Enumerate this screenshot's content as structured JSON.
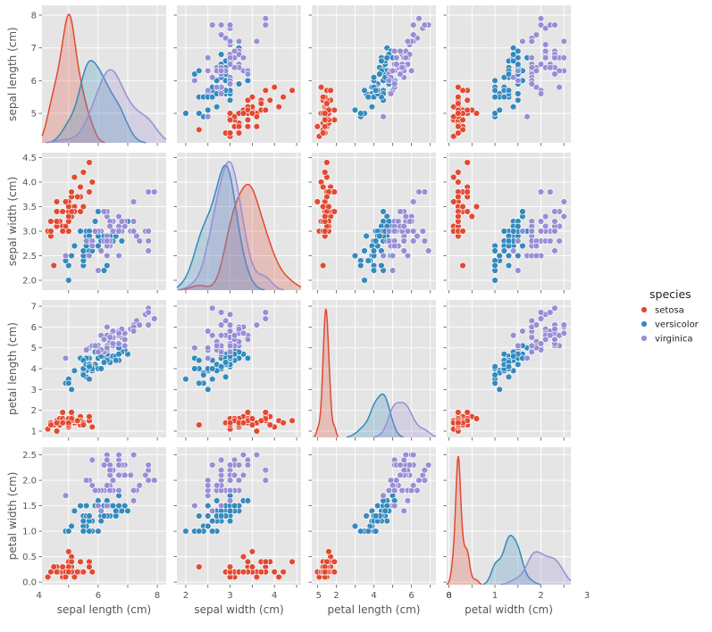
{
  "chart_data": {
    "type": "scatter",
    "subtype": "pairplot",
    "diag_kind": "kde",
    "variables": [
      "sepal length (cm)",
      "sepal width (cm)",
      "petal length (cm)",
      "petal width (cm)"
    ],
    "axis_ranges": [
      [
        4.1,
        8.3
      ],
      [
        1.8,
        4.6
      ],
      [
        0.7,
        7.3
      ],
      [
        -0.05,
        2.65
      ]
    ],
    "ticks": [
      [
        4,
        5,
        6,
        7,
        8
      ],
      [
        2.0,
        2.5,
        3.0,
        3.5,
        4.0,
        4.5
      ],
      [
        1,
        2,
        3,
        4,
        5,
        6,
        7
      ],
      [
        0.0,
        0.5,
        1.0,
        1.5,
        2.0,
        2.5
      ]
    ],
    "tick_labels_y": [
      [
        "5",
        "6",
        "7",
        "8"
      ],
      [
        "2.0",
        "2.5",
        "3.0",
        "3.5",
        "4.0",
        "4.5"
      ],
      [
        "1",
        "2",
        "3",
        "4",
        "5",
        "6",
        "7"
      ],
      [
        "0.0",
        "0.5",
        "1.0",
        "1.5",
        "2.0",
        "2.5"
      ]
    ],
    "tick_labels_x": [
      [
        "4",
        "6",
        "8"
      ],
      [
        "2",
        "3",
        "4",
        "5"
      ],
      [
        "2",
        "4",
        "6",
        "8"
      ],
      [
        "0",
        "1",
        "2",
        "3"
      ]
    ],
    "grid": true,
    "legend": {
      "title": "species",
      "placement": "right"
    },
    "series": [
      {
        "name": "setosa",
        "color": "#e24a33",
        "rows": [
          [
            5.1,
            3.5,
            1.4,
            0.2
          ],
          [
            4.9,
            3.0,
            1.4,
            0.2
          ],
          [
            4.7,
            3.2,
            1.3,
            0.2
          ],
          [
            4.6,
            3.1,
            1.5,
            0.2
          ],
          [
            5.0,
            3.6,
            1.4,
            0.2
          ],
          [
            5.4,
            3.9,
            1.7,
            0.4
          ],
          [
            4.6,
            3.4,
            1.4,
            0.3
          ],
          [
            5.0,
            3.4,
            1.5,
            0.2
          ],
          [
            4.4,
            2.9,
            1.4,
            0.2
          ],
          [
            4.9,
            3.1,
            1.5,
            0.1
          ],
          [
            5.4,
            3.7,
            1.5,
            0.2
          ],
          [
            4.8,
            3.4,
            1.6,
            0.2
          ],
          [
            4.8,
            3.0,
            1.4,
            0.1
          ],
          [
            4.3,
            3.0,
            1.1,
            0.1
          ],
          [
            5.8,
            4.0,
            1.2,
            0.2
          ],
          [
            5.7,
            4.4,
            1.5,
            0.4
          ],
          [
            5.4,
            3.9,
            1.3,
            0.4
          ],
          [
            5.1,
            3.5,
            1.4,
            0.3
          ],
          [
            5.7,
            3.8,
            1.7,
            0.3
          ],
          [
            5.1,
            3.8,
            1.5,
            0.3
          ],
          [
            5.4,
            3.4,
            1.7,
            0.2
          ],
          [
            5.1,
            3.7,
            1.5,
            0.4
          ],
          [
            4.6,
            3.6,
            1.0,
            0.2
          ],
          [
            5.1,
            3.3,
            1.7,
            0.5
          ],
          [
            4.8,
            3.4,
            1.9,
            0.2
          ],
          [
            5.0,
            3.0,
            1.6,
            0.2
          ],
          [
            5.0,
            3.4,
            1.6,
            0.4
          ],
          [
            5.2,
            3.5,
            1.5,
            0.2
          ],
          [
            5.2,
            3.4,
            1.4,
            0.2
          ],
          [
            4.7,
            3.2,
            1.6,
            0.2
          ],
          [
            4.8,
            3.1,
            1.6,
            0.2
          ],
          [
            5.4,
            3.4,
            1.5,
            0.4
          ],
          [
            5.2,
            4.1,
            1.5,
            0.1
          ],
          [
            5.5,
            4.2,
            1.4,
            0.2
          ],
          [
            4.9,
            3.1,
            1.5,
            0.2
          ],
          [
            5.0,
            3.2,
            1.2,
            0.2
          ],
          [
            5.5,
            3.5,
            1.3,
            0.2
          ],
          [
            4.9,
            3.6,
            1.4,
            0.1
          ],
          [
            4.4,
            3.0,
            1.3,
            0.2
          ],
          [
            5.1,
            3.4,
            1.5,
            0.2
          ],
          [
            5.0,
            3.5,
            1.3,
            0.3
          ],
          [
            4.5,
            2.3,
            1.3,
            0.3
          ],
          [
            4.4,
            3.2,
            1.3,
            0.2
          ],
          [
            5.0,
            3.5,
            1.6,
            0.6
          ],
          [
            5.1,
            3.8,
            1.9,
            0.4
          ],
          [
            4.8,
            3.0,
            1.4,
            0.3
          ],
          [
            5.1,
            3.8,
            1.6,
            0.2
          ],
          [
            4.6,
            3.2,
            1.4,
            0.2
          ],
          [
            5.3,
            3.7,
            1.5,
            0.2
          ],
          [
            5.0,
            3.3,
            1.4,
            0.2
          ]
        ]
      },
      {
        "name": "versicolor",
        "color": "#348abd",
        "rows": [
          [
            7.0,
            3.2,
            4.7,
            1.4
          ],
          [
            6.4,
            3.2,
            4.5,
            1.5
          ],
          [
            6.9,
            3.1,
            4.9,
            1.5
          ],
          [
            5.5,
            2.3,
            4.0,
            1.3
          ],
          [
            6.5,
            2.8,
            4.6,
            1.5
          ],
          [
            5.7,
            2.8,
            4.5,
            1.3
          ],
          [
            6.3,
            3.3,
            4.7,
            1.6
          ],
          [
            4.9,
            2.4,
            3.3,
            1.0
          ],
          [
            6.6,
            2.9,
            4.6,
            1.3
          ],
          [
            5.2,
            2.7,
            3.9,
            1.4
          ],
          [
            5.0,
            2.0,
            3.5,
            1.0
          ],
          [
            5.9,
            3.0,
            4.2,
            1.5
          ],
          [
            6.0,
            2.2,
            4.0,
            1.0
          ],
          [
            6.1,
            2.9,
            4.7,
            1.4
          ],
          [
            5.6,
            2.9,
            3.6,
            1.3
          ],
          [
            6.7,
            3.1,
            4.4,
            1.4
          ],
          [
            5.6,
            3.0,
            4.5,
            1.5
          ],
          [
            5.8,
            2.7,
            4.1,
            1.0
          ],
          [
            6.2,
            2.2,
            4.5,
            1.5
          ],
          [
            5.6,
            2.5,
            3.9,
            1.1
          ],
          [
            5.9,
            3.2,
            4.8,
            1.8
          ],
          [
            6.1,
            2.8,
            4.0,
            1.3
          ],
          [
            6.3,
            2.5,
            4.9,
            1.5
          ],
          [
            6.1,
            2.8,
            4.7,
            1.2
          ],
          [
            6.4,
            2.9,
            4.3,
            1.3
          ],
          [
            6.6,
            3.0,
            4.4,
            1.4
          ],
          [
            6.8,
            2.8,
            4.8,
            1.4
          ],
          [
            6.7,
            3.0,
            5.0,
            1.7
          ],
          [
            6.0,
            2.9,
            4.5,
            1.5
          ],
          [
            5.7,
            2.6,
            3.5,
            1.0
          ],
          [
            5.5,
            2.4,
            3.8,
            1.1
          ],
          [
            5.5,
            2.4,
            3.7,
            1.0
          ],
          [
            5.8,
            2.7,
            3.9,
            1.2
          ],
          [
            6.0,
            2.7,
            5.1,
            1.6
          ],
          [
            5.4,
            3.0,
            4.5,
            1.5
          ],
          [
            6.0,
            3.4,
            4.5,
            1.6
          ],
          [
            6.7,
            3.1,
            4.7,
            1.5
          ],
          [
            6.3,
            2.3,
            4.4,
            1.3
          ],
          [
            5.6,
            3.0,
            4.1,
            1.3
          ],
          [
            5.5,
            2.5,
            4.0,
            1.3
          ],
          [
            5.5,
            2.6,
            4.4,
            1.2
          ],
          [
            6.1,
            3.0,
            4.6,
            1.4
          ],
          [
            5.8,
            2.6,
            4.0,
            1.2
          ],
          [
            5.0,
            2.3,
            3.3,
            1.0
          ],
          [
            5.6,
            2.7,
            4.2,
            1.3
          ],
          [
            5.7,
            3.0,
            4.2,
            1.2
          ],
          [
            5.7,
            2.9,
            4.2,
            1.3
          ],
          [
            6.2,
            2.9,
            4.3,
            1.3
          ],
          [
            5.1,
            2.5,
            3.0,
            1.1
          ],
          [
            5.7,
            2.8,
            4.1,
            1.3
          ]
        ]
      },
      {
        "name": "virginica",
        "color": "#988ed5",
        "rows": [
          [
            6.3,
            3.3,
            6.0,
            2.5
          ],
          [
            5.8,
            2.7,
            5.1,
            1.9
          ],
          [
            7.1,
            3.0,
            5.9,
            2.1
          ],
          [
            6.3,
            2.9,
            5.6,
            1.8
          ],
          [
            6.5,
            3.0,
            5.8,
            2.2
          ],
          [
            7.6,
            3.0,
            6.6,
            2.1
          ],
          [
            4.9,
            2.5,
            4.5,
            1.7
          ],
          [
            7.3,
            2.9,
            6.3,
            1.8
          ],
          [
            6.7,
            2.5,
            5.8,
            1.8
          ],
          [
            7.2,
            3.6,
            6.1,
            2.5
          ],
          [
            6.5,
            3.2,
            5.1,
            2.0
          ],
          [
            6.4,
            2.7,
            5.3,
            1.9
          ],
          [
            6.8,
            3.0,
            5.5,
            2.1
          ],
          [
            5.7,
            2.5,
            5.0,
            2.0
          ],
          [
            5.8,
            2.8,
            5.1,
            2.4
          ],
          [
            6.4,
            3.2,
            5.3,
            2.3
          ],
          [
            6.5,
            3.0,
            5.5,
            1.8
          ],
          [
            7.7,
            3.8,
            6.7,
            2.2
          ],
          [
            7.7,
            2.6,
            6.9,
            2.3
          ],
          [
            6.0,
            2.2,
            5.0,
            1.5
          ],
          [
            6.9,
            3.2,
            5.7,
            2.3
          ],
          [
            5.6,
            2.8,
            4.9,
            2.0
          ],
          [
            7.7,
            2.8,
            6.7,
            2.0
          ],
          [
            6.3,
            2.7,
            4.9,
            1.8
          ],
          [
            6.7,
            3.3,
            5.7,
            2.1
          ],
          [
            7.2,
            3.2,
            6.0,
            1.8
          ],
          [
            6.2,
            2.8,
            4.8,
            1.8
          ],
          [
            6.1,
            3.0,
            4.9,
            1.8
          ],
          [
            6.4,
            2.8,
            5.6,
            2.1
          ],
          [
            7.2,
            3.0,
            5.8,
            1.6
          ],
          [
            7.4,
            2.8,
            6.1,
            1.9
          ],
          [
            7.9,
            3.8,
            6.4,
            2.0
          ],
          [
            6.4,
            2.8,
            5.6,
            2.2
          ],
          [
            6.3,
            2.8,
            5.1,
            1.5
          ],
          [
            6.1,
            2.6,
            5.6,
            1.4
          ],
          [
            7.7,
            3.0,
            6.1,
            2.3
          ],
          [
            6.3,
            3.4,
            5.6,
            2.4
          ],
          [
            6.4,
            3.1,
            5.5,
            1.8
          ],
          [
            6.0,
            3.0,
            4.8,
            1.8
          ],
          [
            6.9,
            3.1,
            5.4,
            2.1
          ],
          [
            6.7,
            3.1,
            5.6,
            2.4
          ],
          [
            6.9,
            3.1,
            5.1,
            2.3
          ],
          [
            5.8,
            2.7,
            5.1,
            1.9
          ],
          [
            6.8,
            3.2,
            5.9,
            2.3
          ],
          [
            6.7,
            3.3,
            5.7,
            2.5
          ],
          [
            6.7,
            3.0,
            5.2,
            2.3
          ],
          [
            6.3,
            2.5,
            5.0,
            1.9
          ],
          [
            6.5,
            3.0,
            5.2,
            2.0
          ],
          [
            6.2,
            3.4,
            5.4,
            2.3
          ],
          [
            5.9,
            3.0,
            5.1,
            1.8
          ]
        ]
      }
    ]
  }
}
